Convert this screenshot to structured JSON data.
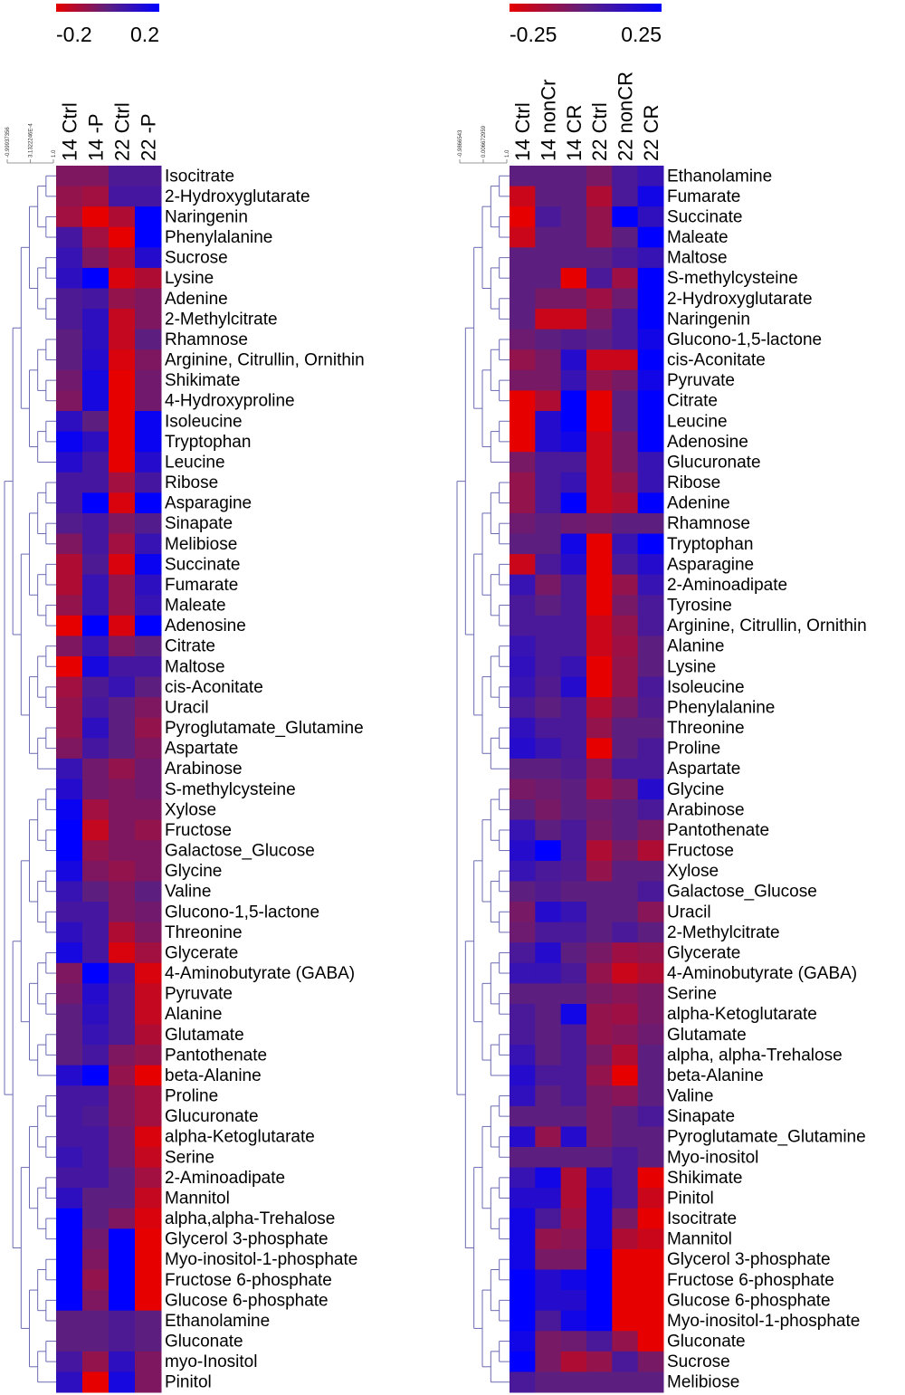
{
  "chart_data": [
    {
      "type": "heatmap",
      "columns": [
        "14 Ctrl",
        "14 -P",
        "22 Ctrl",
        "22 -P"
      ],
      "rows": [
        "Isocitrate",
        "2-Hydroxyglutarate",
        "Naringenin",
        "Phenylalanine",
        "Sucrose",
        "Lysine",
        "Adenine",
        "2-Methylcitrate",
        "Rhamnose",
        "Arginine, Citrullin, Ornithin",
        "Shikimate",
        "4-Hydroxyproline",
        "Isoleucine",
        "Tryptophan",
        "Leucine",
        "Ribose",
        "Asparagine",
        "Sinapate",
        "Melibiose",
        "Succinate",
        "Fumarate",
        "Maleate",
        "Adenosine",
        "Citrate",
        "Maltose",
        "cis-Aconitate",
        "Uracil",
        "Pyroglutamate_Glutamine",
        "Aspartate",
        "Arabinose",
        "S-methylcysteine",
        "Xylose",
        "Fructose",
        "Galactose_Glucose",
        "Glycine",
        "Valine",
        "Glucono-1,5-lactone",
        "Threonine",
        "Glycerate",
        "4-Aminobutyrate (GABA)",
        "Pyruvate",
        "Alanine",
        "Glutamate",
        "Pantothenate",
        "beta-Alanine",
        "Proline",
        "Glucuronate",
        "alpha-Ketoglutarate",
        "Serine",
        "2-Aminoadipate",
        "Mannitol",
        "alpha,alpha-Trehalose",
        "Glycerol 3-phosphate",
        "Myo-inositol-1-phosphate",
        "Fructose 6-phosphate",
        "Glucose 6-phosphate",
        "Ethanolamine",
        "Gluconate",
        "myo-Inositol",
        "Pinitol"
      ],
      "values": [
        [
          -0.05,
          -0.05,
          0.03,
          0.03
        ],
        [
          -0.08,
          -0.1,
          0.05,
          0.05
        ],
        [
          -0.1,
          -0.2,
          -0.12,
          0.2
        ],
        [
          0.05,
          -0.1,
          -0.2,
          0.2
        ],
        [
          0.08,
          -0.05,
          -0.12,
          0.12
        ],
        [
          0.1,
          0.2,
          -0.18,
          -0.12
        ],
        [
          0.03,
          0.05,
          -0.08,
          -0.05
        ],
        [
          0.03,
          0.1,
          -0.15,
          -0.05
        ],
        [
          0,
          0.1,
          -0.15,
          0
        ],
        [
          0,
          0.12,
          -0.18,
          -0.05
        ],
        [
          -0.03,
          0.15,
          -0.2,
          -0.03
        ],
        [
          -0.05,
          0.15,
          -0.2,
          -0.03
        ],
        [
          0.1,
          0,
          -0.2,
          0.18
        ],
        [
          0.18,
          0.1,
          -0.2,
          0.18
        ],
        [
          0.12,
          0.05,
          -0.2,
          0.12
        ],
        [
          0.05,
          0.05,
          -0.1,
          0.05
        ],
        [
          0.05,
          0.2,
          -0.18,
          0.2
        ],
        [
          0.02,
          0.05,
          -0.05,
          0.02
        ],
        [
          -0.05,
          0.05,
          -0.1,
          0.08
        ],
        [
          -0.12,
          0.03,
          -0.18,
          0.18
        ],
        [
          -0.12,
          0.08,
          -0.08,
          0.1
        ],
        [
          -0.08,
          0.08,
          -0.08,
          0.08
        ],
        [
          -0.2,
          0.2,
          -0.18,
          0.2
        ],
        [
          -0.05,
          0.08,
          -0.05,
          0
        ],
        [
          -0.2,
          0.15,
          0.05,
          0.05
        ],
        [
          -0.1,
          0.03,
          0.08,
          0
        ],
        [
          -0.08,
          0.05,
          0,
          -0.05
        ],
        [
          -0.08,
          0.1,
          0,
          -0.08
        ],
        [
          -0.05,
          0.05,
          0,
          -0.05
        ],
        [
          0.08,
          -0.03,
          -0.08,
          -0.03
        ],
        [
          0.12,
          -0.03,
          -0.05,
          -0.03
        ],
        [
          0.18,
          -0.1,
          -0.05,
          -0.05
        ],
        [
          0.2,
          -0.15,
          -0.05,
          -0.08
        ],
        [
          0.2,
          -0.08,
          -0.05,
          -0.05
        ],
        [
          0.15,
          -0.05,
          -0.08,
          -0.05
        ],
        [
          0.08,
          0,
          -0.05,
          0
        ],
        [
          0.05,
          0.05,
          -0.05,
          -0.03
        ],
        [
          0.1,
          0.05,
          -0.12,
          -0.05
        ],
        [
          0.15,
          0.05,
          -0.18,
          -0.1
        ],
        [
          -0.05,
          0.2,
          0.05,
          -0.18
        ],
        [
          -0.03,
          0.12,
          0.03,
          -0.15
        ],
        [
          0,
          0.1,
          0.03,
          -0.15
        ],
        [
          0,
          0.08,
          0.03,
          -0.12
        ],
        [
          0,
          0.05,
          -0.05,
          -0.08
        ],
        [
          0.12,
          0.2,
          -0.08,
          -0.2
        ],
        [
          0.05,
          0.05,
          -0.05,
          -0.1
        ],
        [
          0.05,
          0.03,
          -0.05,
          -0.1
        ],
        [
          0.05,
          0.05,
          -0.03,
          -0.18
        ],
        [
          0.08,
          0.05,
          -0.03,
          -0.15
        ],
        [
          0.05,
          0.05,
          0,
          -0.1
        ],
        [
          0.1,
          0,
          0,
          -0.15
        ],
        [
          0.2,
          0,
          -0.05,
          -0.18
        ],
        [
          0.2,
          -0.03,
          0.2,
          -0.2
        ],
        [
          0.2,
          -0.05,
          0.2,
          -0.2
        ],
        [
          0.2,
          -0.08,
          0.2,
          -0.2
        ],
        [
          0.2,
          -0.05,
          0.2,
          -0.2
        ],
        [
          0,
          0,
          0.03,
          0
        ],
        [
          0,
          0,
          0.03,
          0
        ],
        [
          0.05,
          -0.08,
          0.1,
          -0.05
        ],
        [
          0.1,
          -0.2,
          0.15,
          -0.05
        ]
      ],
      "clim": [
        -0.2,
        0.2
      ],
      "cticks": [
        -0.2,
        0.2
      ],
      "colormap": [
        "#e60000",
        "#5c1f80",
        "#0000ff"
      ],
      "dendrogram_scale": [
        "-0.99937356",
        "3.1322246E-4",
        "1.0"
      ]
    },
    {
      "type": "heatmap",
      "columns": [
        "14 Ctrl",
        "14 nonCr",
        "14 CR",
        "22 Ctrl",
        "22 nonCR",
        "22 CR"
      ],
      "rows": [
        "Ethanolamine",
        "Fumarate",
        "Succinate",
        "Maleate",
        "Maltose",
        "S-methylcysteine",
        "2-Hydroxyglutarate",
        "Naringenin",
        "Glucono-1,5-lactone",
        "cis-Aconitate",
        "Pyruvate",
        "Citrate",
        "Leucine",
        "Adenosine",
        "Glucuronate",
        "Ribose",
        "Adenine",
        "Rhamnose",
        "Tryptophan",
        "Asparagine",
        "2-Aminoadipate",
        "Tyrosine",
        "Arginine, Citrullin, Ornithin",
        "Alanine",
        "Lysine",
        "Isoleucine",
        "Phenylalanine",
        "Threonine",
        "Proline",
        "Aspartate",
        "Glycine",
        "Arabinose",
        "Pantothenate",
        "Fructose",
        "Xylose",
        "Galactose_Glucose",
        "Uracil",
        "2-Methylcitrate",
        "Glycerate",
        "4-Aminobutyrate (GABA)",
        "Serine",
        "alpha-Ketoglutarate",
        "Glutamate",
        "alpha, alpha-Trehalose",
        "beta-Alanine",
        "Valine",
        "Sinapate",
        "Pyroglutamate_Glutamine",
        "Myo-inositol",
        "Shikimate",
        "Pinitol",
        "Isocitrate",
        "Mannitol",
        "Glycerol 3-phosphate",
        "Fructose 6-phosphate",
        "Glucose 6-phosphate",
        "Myo-inositol-1-phosphate",
        "Gluconate",
        "Sucrose",
        "Melibiose"
      ],
      "values": [
        [
          0,
          0,
          0,
          -0.05,
          0.05,
          0.1
        ],
        [
          -0.2,
          0,
          0,
          -0.15,
          0.05,
          0.2
        ],
        [
          -0.25,
          0.05,
          0,
          -0.1,
          0.25,
          0.12
        ],
        [
          -0.2,
          0,
          0,
          -0.1,
          0,
          0.25
        ],
        [
          0,
          0,
          0,
          0,
          0.05,
          0.1
        ],
        [
          0,
          0,
          -0.25,
          0.05,
          -0.12,
          0.25
        ],
        [
          0,
          -0.05,
          -0.05,
          -0.12,
          -0.03,
          0.25
        ],
        [
          0,
          -0.2,
          -0.2,
          -0.05,
          0.05,
          0.25
        ],
        [
          -0.03,
          0,
          0.03,
          0,
          0.05,
          0.2
        ],
        [
          -0.1,
          -0.05,
          0.15,
          -0.2,
          -0.2,
          0.25
        ],
        [
          -0.05,
          -0.05,
          0.1,
          -0.1,
          -0.05,
          0.2
        ],
        [
          -0.25,
          -0.15,
          0.25,
          -0.25,
          0,
          0.25
        ],
        [
          -0.25,
          0.15,
          0.25,
          -0.25,
          0,
          0.25
        ],
        [
          -0.25,
          0.15,
          0.2,
          -0.2,
          -0.05,
          0.25
        ],
        [
          -0.05,
          0.05,
          0.05,
          -0.2,
          -0.05,
          0.1
        ],
        [
          -0.1,
          0.05,
          0.1,
          -0.2,
          -0.1,
          0.1
        ],
        [
          -0.1,
          0.05,
          0.25,
          -0.2,
          -0.15,
          0.25
        ],
        [
          -0.03,
          0,
          -0.03,
          -0.05,
          0,
          0
        ],
        [
          0,
          0,
          0.2,
          -0.25,
          0.1,
          0.25
        ],
        [
          -0.2,
          0.05,
          0.15,
          -0.25,
          0.05,
          0.15
        ],
        [
          0.1,
          -0.05,
          0.05,
          -0.25,
          -0.1,
          0.1
        ],
        [
          0.05,
          0,
          0.05,
          -0.25,
          -0.05,
          0.05
        ],
        [
          0.05,
          0.05,
          0.05,
          -0.2,
          -0.1,
          0.05
        ],
        [
          0.1,
          0.05,
          0.05,
          -0.2,
          -0.12,
          0
        ],
        [
          0.12,
          0.05,
          0.1,
          -0.25,
          -0.1,
          0
        ],
        [
          0.1,
          0.03,
          0.15,
          -0.25,
          -0.1,
          0.05
        ],
        [
          0.05,
          0,
          0.05,
          -0.15,
          -0.05,
          0.03
        ],
        [
          0.12,
          0.05,
          0.05,
          -0.1,
          0,
          0
        ],
        [
          0.15,
          0.1,
          0.05,
          -0.25,
          0,
          0.05
        ],
        [
          0,
          0,
          0.03,
          -0.08,
          0.05,
          0.05
        ],
        [
          -0.05,
          -0.03,
          0,
          -0.12,
          -0.05,
          0.15
        ],
        [
          0,
          -0.05,
          0,
          -0.03,
          0,
          0.05
        ],
        [
          0.1,
          0,
          0.05,
          -0.05,
          0,
          -0.05
        ],
        [
          0.15,
          0.25,
          0.05,
          -0.15,
          -0.05,
          -0.15
        ],
        [
          0.1,
          0.05,
          0.03,
          -0.1,
          0,
          0
        ],
        [
          0,
          0.03,
          0,
          0,
          0,
          0.05
        ],
        [
          -0.05,
          0.15,
          0.1,
          0,
          0,
          -0.08
        ],
        [
          -0.03,
          0.05,
          0.05,
          0,
          0.05,
          0
        ],
        [
          0.05,
          0.15,
          0,
          -0.05,
          -0.12,
          -0.1
        ],
        [
          0.1,
          0.1,
          0.05,
          -0.1,
          -0.2,
          -0.15
        ],
        [
          0,
          0,
          0,
          -0.05,
          -0.08,
          -0.05
        ],
        [
          0.05,
          0,
          0.2,
          -0.1,
          -0.12,
          -0.05
        ],
        [
          0.05,
          0,
          0.05,
          -0.1,
          -0.08,
          -0.03
        ],
        [
          0.1,
          0,
          0.05,
          -0.05,
          -0.15,
          0
        ],
        [
          0.15,
          0.05,
          0.05,
          -0.1,
          -0.25,
          0
        ],
        [
          0.12,
          0,
          0.05,
          -0.05,
          -0.08,
          0
        ],
        [
          0,
          0,
          0,
          -0.05,
          0,
          0.05
        ],
        [
          0.15,
          -0.1,
          0.15,
          -0.05,
          0,
          0
        ],
        [
          0,
          0,
          0,
          0,
          0.05,
          0
        ],
        [
          0.1,
          0.2,
          -0.15,
          0.15,
          0.05,
          -0.25
        ],
        [
          0.15,
          0.15,
          -0.15,
          0.2,
          0.05,
          -0.2
        ],
        [
          0.2,
          0.05,
          -0.12,
          0.2,
          -0.05,
          -0.25
        ],
        [
          0.2,
          -0.1,
          -0.08,
          0.2,
          -0.15,
          -0.2
        ],
        [
          0.2,
          -0.05,
          -0.05,
          0.25,
          -0.25,
          -0.25
        ],
        [
          0.25,
          0.15,
          0.2,
          0.25,
          -0.25,
          -0.25
        ],
        [
          0.25,
          0.15,
          0.15,
          0.25,
          -0.25,
          -0.25
        ],
        [
          0.25,
          0.05,
          0.2,
          0.25,
          -0.25,
          -0.25
        ],
        [
          0.2,
          -0.05,
          -0.03,
          0.05,
          -0.1,
          -0.25
        ],
        [
          0.25,
          -0.05,
          -0.15,
          -0.1,
          0.05,
          -0.05
        ],
        [
          0.05,
          0,
          0,
          0,
          0,
          0
        ]
      ],
      "clim": [
        -0.25,
        0.25
      ],
      "cticks": [
        -0.25,
        0.25
      ],
      "colormap": [
        "#e60000",
        "#5c1f80",
        "#0000ff"
      ],
      "dendrogram_scale": [
        "-0.9866543",
        "0.006672959",
        "1.0"
      ]
    }
  ]
}
